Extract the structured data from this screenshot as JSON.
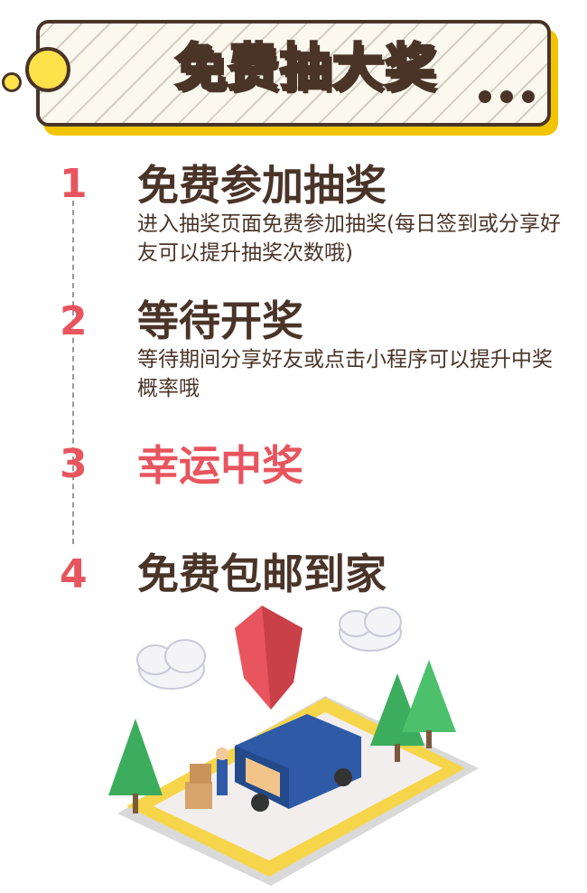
{
  "banner": {
    "title": "免费抽大奖"
  },
  "steps": [
    {
      "number": "1",
      "title": "免费参加抽奖",
      "desc": "进入抽奖页面免费参加抽奖(每日签到或分享好友可以提升抽奖次数哦)"
    },
    {
      "number": "2",
      "title": "等待开奖",
      "desc": "等待期间分享好友或点击小程序可以提升中奖概率哦"
    },
    {
      "number": "3",
      "title": "幸运中奖",
      "desc": ""
    },
    {
      "number": "4",
      "title": "免费包邮到家",
      "desc": ""
    }
  ],
  "colors": {
    "accent": "#e8555e",
    "text": "#4a3428",
    "yellow": "#ffe14a",
    "shadow": "#f2c400"
  }
}
